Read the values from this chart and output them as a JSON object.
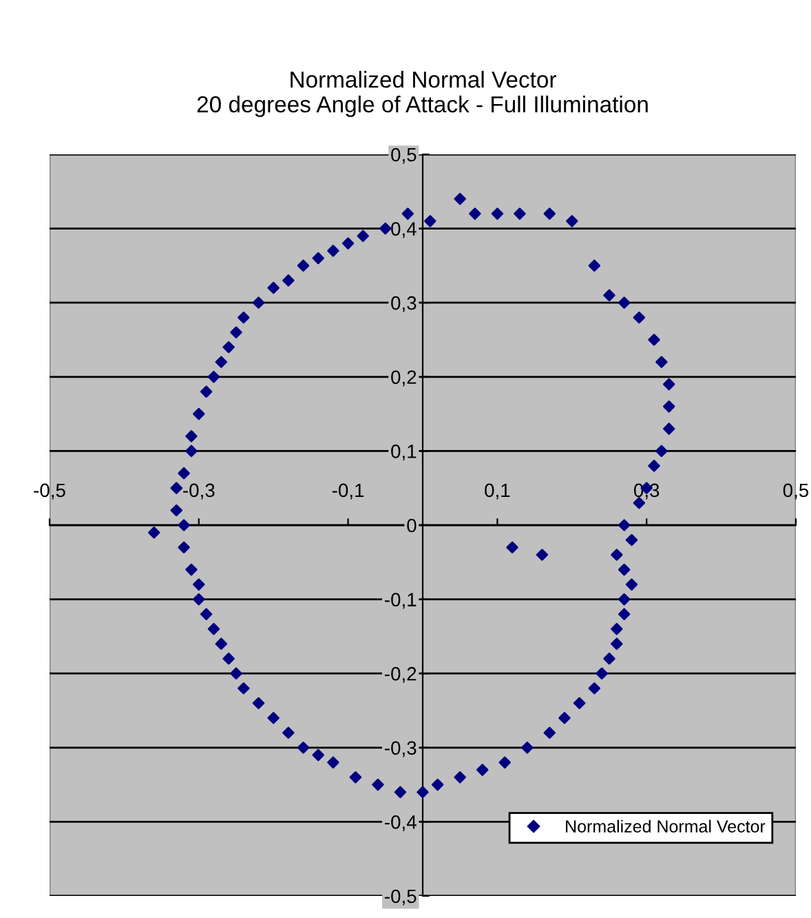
{
  "chart_data": {
    "type": "scatter",
    "title": "Normalized Normal Vector\n20 degrees Angle of Attack - Full Illumination",
    "xlim": [
      -0.5,
      0.5
    ],
    "ylim": [
      -0.5,
      0.5
    ],
    "xticks": [
      {
        "value": -0.5,
        "label": "-0,5"
      },
      {
        "value": -0.3,
        "label": "-0,3"
      },
      {
        "value": -0.1,
        "label": "-0,1"
      },
      {
        "value": 0.1,
        "label": "0,1"
      },
      {
        "value": 0.3,
        "label": "0,3"
      },
      {
        "value": 0.5,
        "label": "0,5"
      }
    ],
    "yticks": [
      {
        "value": -0.5,
        "label": "-0,5"
      },
      {
        "value": -0.4,
        "label": "-0,4"
      },
      {
        "value": -0.3,
        "label": "-0,3"
      },
      {
        "value": -0.2,
        "label": "-0,2"
      },
      {
        "value": -0.1,
        "label": "-0,1"
      },
      {
        "value": 0,
        "label": "0"
      },
      {
        "value": 0.1,
        "label": "0,1"
      },
      {
        "value": 0.2,
        "label": "0,2"
      },
      {
        "value": 0.3,
        "label": "0,3"
      },
      {
        "value": 0.4,
        "label": "0,4"
      },
      {
        "value": 0.5,
        "label": "0,5"
      }
    ],
    "grid": "y",
    "legend": "bottom right",
    "marker": "diamond",
    "series": [
      {
        "name": "Normalized Normal Vector",
        "color": "#000080",
        "x": [
          -0.02,
          -0.05,
          -0.08,
          -0.1,
          -0.12,
          -0.14,
          -0.16,
          -0.18,
          -0.2,
          -0.22,
          -0.24,
          -0.25,
          -0.26,
          -0.27,
          -0.28,
          -0.29,
          -0.3,
          -0.31,
          -0.31,
          -0.32,
          -0.33,
          -0.33,
          -0.32,
          -0.36,
          -0.32,
          -0.31,
          -0.3,
          -0.3,
          -0.29,
          -0.28,
          -0.27,
          -0.26,
          -0.25,
          -0.24,
          -0.22,
          -0.2,
          -0.18,
          -0.16,
          -0.14,
          -0.12,
          -0.09,
          -0.06,
          -0.03,
          0.0,
          0.02,
          0.05,
          0.08,
          0.11,
          0.14,
          0.17,
          0.19,
          0.21,
          0.23,
          0.24,
          0.25,
          0.26,
          0.26,
          0.27,
          0.27,
          0.28,
          0.27,
          0.26,
          0.28,
          0.27,
          0.29,
          0.3,
          0.31,
          0.32,
          0.33,
          0.33,
          0.33,
          0.32,
          0.31,
          0.29,
          0.27,
          0.25,
          0.23,
          0.2,
          0.17,
          0.13,
          0.1,
          0.07,
          0.05,
          0.01,
          0.16,
          0.12
        ],
        "values": [
          0.42,
          0.4,
          0.39,
          0.38,
          0.37,
          0.36,
          0.35,
          0.33,
          0.32,
          0.3,
          0.28,
          0.26,
          0.24,
          0.22,
          0.2,
          0.18,
          0.15,
          0.12,
          0.1,
          0.07,
          0.05,
          0.02,
          0.0,
          -0.01,
          -0.03,
          -0.06,
          -0.08,
          -0.1,
          -0.12,
          -0.14,
          -0.16,
          -0.18,
          -0.2,
          -0.22,
          -0.24,
          -0.26,
          -0.28,
          -0.3,
          -0.31,
          -0.32,
          -0.34,
          -0.35,
          -0.36,
          -0.36,
          -0.35,
          -0.34,
          -0.33,
          -0.32,
          -0.3,
          -0.28,
          -0.26,
          -0.24,
          -0.22,
          -0.2,
          -0.18,
          -0.16,
          -0.14,
          -0.12,
          -0.1,
          -0.08,
          -0.06,
          -0.04,
          -0.02,
          0.0,
          0.03,
          0.05,
          0.08,
          0.1,
          0.13,
          0.16,
          0.19,
          0.22,
          0.25,
          0.28,
          0.3,
          0.31,
          0.35,
          0.41,
          0.42,
          0.42,
          0.42,
          0.42,
          0.44,
          0.41,
          -0.04,
          -0.03
        ]
      }
    ]
  }
}
